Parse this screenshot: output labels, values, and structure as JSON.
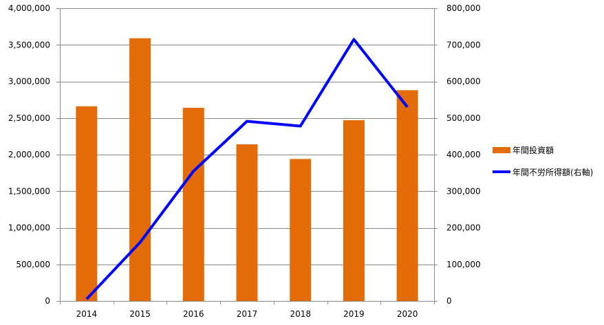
{
  "chart_data": {
    "type": "bar",
    "categories": [
      "2014",
      "2015",
      "2016",
      "2017",
      "2018",
      "2019",
      "2020"
    ],
    "series": [
      {
        "name": "年間投資額",
        "type": "bar",
        "axis": "left",
        "color": "#E36C09",
        "values": [
          2660000,
          3590000,
          2640000,
          2140000,
          1940000,
          2470000,
          2880000
        ]
      },
      {
        "name": "年間不労所得額(右軸)",
        "type": "line",
        "axis": "right",
        "color": "#0000FF",
        "values": [
          5000,
          160000,
          355000,
          491000,
          478000,
          715000,
          530000
        ]
      }
    ],
    "left_axis": {
      "ylim": [
        0,
        4000000
      ],
      "ticks": [
        0,
        500000,
        1000000,
        1500000,
        2000000,
        2500000,
        3000000,
        3500000,
        4000000
      ],
      "tick_labels": [
        "0",
        "500,000",
        "1,000,000",
        "1,500,000",
        "2,000,000",
        "2,500,000",
        "3,000,000",
        "3,500,000",
        "4,000,000"
      ]
    },
    "right_axis": {
      "ylim": [
        0,
        800000
      ],
      "ticks": [
        0,
        100000,
        200000,
        300000,
        400000,
        500000,
        600000,
        700000,
        800000
      ],
      "tick_labels": [
        "0",
        "100,000",
        "200,000",
        "300,000",
        "400,000",
        "500,000",
        "600,000",
        "700,000",
        "800,000"
      ]
    },
    "grid": true,
    "legend_position": "right"
  }
}
